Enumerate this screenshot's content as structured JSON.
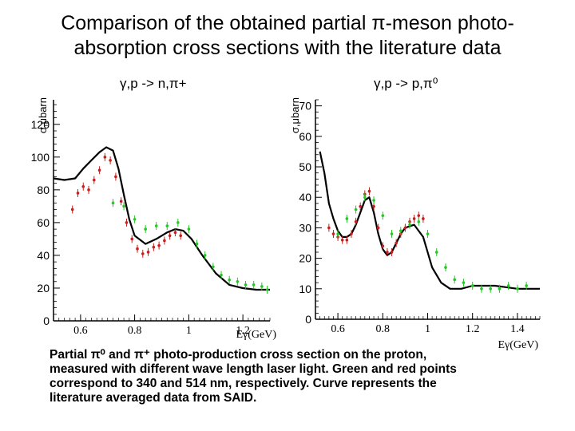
{
  "title_lines": [
    "Comparison of the obtained partial π-meson photo-",
    "absorption cross sections with the literature data"
  ],
  "caption_lines": [
    "Partial π⁰ and π⁺ photo-production cross section on the proton,",
    "measured  with different wave length laser light. Green and red points",
    "correspond to 340 and 514 nm, respectively. Curve represents the",
    "literature averaged data from SAID."
  ],
  "colors": {
    "curve": "#000000",
    "green": "#22c922",
    "red": "#c81e1e",
    "axis": "#000000"
  },
  "chart_data": [
    {
      "type": "scatter",
      "title": "γ,p -> n,π+",
      "xlabel": "Eγ(GeV)",
      "ylabel": "σ,μbarn",
      "xlim": [
        0.5,
        1.3
      ],
      "ylim": [
        0,
        135
      ],
      "xticks": [
        "0.6",
        "0.8",
        "1",
        "1.2"
      ],
      "xtick_values": [
        0.6,
        0.8,
        1.0,
        1.2
      ],
      "yticks": [
        "0",
        "20",
        "40",
        "60",
        "80",
        "100",
        "120"
      ],
      "ytick_values": [
        0,
        20,
        40,
        60,
        80,
        100,
        120
      ],
      "series": [
        {
          "name": "SAID curve",
          "kind": "line",
          "x": [
            0.5,
            0.54,
            0.58,
            0.61,
            0.64,
            0.67,
            0.695,
            0.72,
            0.74,
            0.76,
            0.78,
            0.8,
            0.84,
            0.88,
            0.92,
            0.95,
            0.98,
            1.01,
            1.05,
            1.1,
            1.15,
            1.2,
            1.25,
            1.3
          ],
          "y": [
            87,
            86,
            87,
            93,
            98,
            103,
            106,
            104,
            93,
            77,
            62,
            52,
            47,
            50,
            54,
            56,
            55,
            50,
            40,
            29,
            22,
            20,
            19,
            19
          ]
        },
        {
          "name": "514 nm (red)",
          "kind": "points",
          "x": [
            0.57,
            0.59,
            0.61,
            0.63,
            0.65,
            0.67,
            0.69,
            0.71,
            0.73,
            0.75,
            0.77,
            0.79,
            0.81,
            0.83,
            0.85,
            0.87,
            0.89,
            0.91,
            0.93,
            0.95,
            0.97
          ],
          "y": [
            68,
            78,
            82,
            80,
            86,
            92,
            100,
            98,
            88,
            73,
            60,
            50,
            44,
            41,
            42,
            45,
            46,
            49,
            52,
            54,
            52
          ]
        },
        {
          "name": "340 nm (green)",
          "kind": "points",
          "x": [
            0.72,
            0.76,
            0.8,
            0.84,
            0.88,
            0.92,
            0.96,
            1.0,
            1.03,
            1.06,
            1.09,
            1.12,
            1.15,
            1.18,
            1.21,
            1.24,
            1.27,
            1.29
          ],
          "y": [
            72,
            70,
            62,
            56,
            58,
            58,
            60,
            56,
            47,
            40,
            33,
            28,
            25,
            24,
            22,
            22,
            21,
            19
          ]
        }
      ]
    },
    {
      "type": "scatter",
      "title": "γ,p -> p,π⁰",
      "xlabel": "Eγ(GeV)",
      "ylabel": "σ,μbarn",
      "xlim": [
        0.5,
        1.5
      ],
      "ylim": [
        0,
        72
      ],
      "xticks": [
        "0.6",
        "0.8",
        "1",
        "1.2",
        "1.4"
      ],
      "xtick_values": [
        0.6,
        0.8,
        1.0,
        1.2,
        1.4
      ],
      "yticks": [
        "0",
        "10",
        "20",
        "30",
        "40",
        "50",
        "60",
        "70"
      ],
      "ytick_values": [
        0,
        10,
        20,
        30,
        40,
        50,
        60,
        70
      ],
      "series": [
        {
          "name": "SAID curve",
          "kind": "line",
          "x": [
            0.52,
            0.54,
            0.56,
            0.58,
            0.6,
            0.62,
            0.64,
            0.66,
            0.68,
            0.7,
            0.72,
            0.74,
            0.76,
            0.78,
            0.8,
            0.82,
            0.84,
            0.86,
            0.88,
            0.9,
            0.94,
            0.98,
            1.0,
            1.02,
            1.06,
            1.1,
            1.15,
            1.2,
            1.3,
            1.4,
            1.5
          ],
          "y": [
            55,
            48,
            38,
            33,
            29,
            27,
            27,
            28,
            31,
            35,
            39,
            40,
            35,
            28,
            23,
            21,
            22,
            25,
            28,
            30,
            31,
            27,
            22,
            17,
            12,
            10,
            10,
            11,
            11,
            10,
            10
          ]
        },
        {
          "name": "514 nm (red)",
          "kind": "points",
          "x": [
            0.56,
            0.58,
            0.6,
            0.62,
            0.64,
            0.66,
            0.68,
            0.7,
            0.72,
            0.74,
            0.76,
            0.78,
            0.8,
            0.82,
            0.84,
            0.86,
            0.88,
            0.9,
            0.92,
            0.94,
            0.96,
            0.98
          ],
          "y": [
            30,
            28,
            27,
            26,
            26,
            28,
            32,
            37,
            41,
            42,
            37,
            30,
            24,
            22,
            22,
            25,
            28,
            30,
            32,
            33,
            34,
            33
          ]
        },
        {
          "name": "340 nm (green)",
          "kind": "points",
          "x": [
            0.6,
            0.64,
            0.68,
            0.72,
            0.76,
            0.8,
            0.84,
            0.88,
            0.92,
            0.96,
            1.0,
            1.04,
            1.08,
            1.12,
            1.16,
            1.2,
            1.24,
            1.28,
            1.32,
            1.36,
            1.4,
            1.44
          ],
          "y": [
            28,
            33,
            36,
            40,
            39,
            34,
            28,
            29,
            31,
            32,
            28,
            22,
            17,
            13,
            12,
            11,
            10,
            10,
            10,
            11,
            10,
            11
          ]
        }
      ]
    }
  ]
}
